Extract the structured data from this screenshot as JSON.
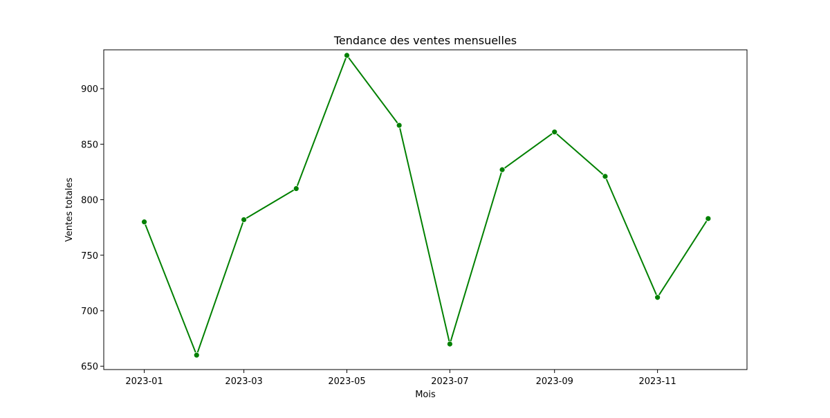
{
  "chart_data": {
    "type": "line",
    "title": "Tendance des ventes mensuelles",
    "xlabel": "Mois",
    "ylabel": "Ventes totales",
    "x": [
      "2023-01-01",
      "2023-02-01",
      "2023-03-01",
      "2023-04-01",
      "2023-05-01",
      "2023-06-01",
      "2023-07-01",
      "2023-08-01",
      "2023-09-01",
      "2023-10-01",
      "2023-11-01",
      "2023-12-01"
    ],
    "series": [
      {
        "values": [
          780,
          660,
          782,
          810,
          930,
          867,
          670,
          827,
          861,
          821,
          712,
          783
        ],
        "color": "#008000",
        "marker": "circle"
      }
    ],
    "xlim": [
      "2022-12-08",
      "2023-12-24"
    ],
    "ylim": [
      647,
      935
    ],
    "x_ticks": [
      "2023-01-01",
      "2023-03-01",
      "2023-05-01",
      "2023-07-01",
      "2023-09-01",
      "2023-11-01"
    ],
    "x_tick_labels": [
      "2023-01",
      "2023-03",
      "2023-05",
      "2023-07",
      "2023-09",
      "2023-11"
    ],
    "y_ticks": [
      650,
      700,
      750,
      800,
      850,
      900
    ],
    "y_tick_labels": [
      "650",
      "700",
      "750",
      "800",
      "850",
      "900"
    ],
    "grid": false,
    "legend": "none"
  }
}
